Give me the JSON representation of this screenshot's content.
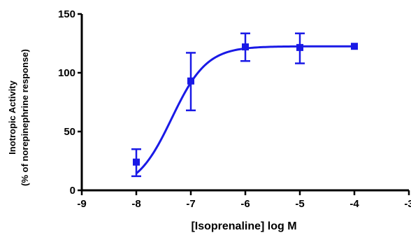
{
  "chart_data": {
    "type": "scatter",
    "title": "",
    "xlabel": "[Isoprenaline] log M",
    "ylabel_lines": [
      "Inotropic Activity",
      "(% of norepinephrine response)"
    ],
    "xlim": [
      -9,
      -3
    ],
    "ylim": [
      0,
      150
    ],
    "x_ticks": [
      -9,
      -8,
      -7,
      -6,
      -5,
      -4,
      -3
    ],
    "x_tick_labels": [
      "-9",
      "-8",
      "-7",
      "-6",
      "-5",
      "-4",
      "-3"
    ],
    "y_ticks": [
      0,
      50,
      100,
      150
    ],
    "y_tick_labels": [
      "0",
      "50",
      "100",
      "150"
    ],
    "grid": false,
    "legend": "none",
    "color": "#1a1ae6",
    "series": [
      {
        "x": [
          -8,
          -7,
          -6,
          -5,
          -4
        ],
        "y": [
          24,
          93,
          122,
          121.5,
          122.5
        ],
        "error_low": [
          12,
          68,
          110,
          108,
          122.5
        ],
        "error_high": [
          35,
          117,
          133.5,
          133.5,
          122.5
        ]
      }
    ],
    "fit_curve": {
      "type": "sigmoid",
      "bottom": 0,
      "top": 122.5,
      "logEC50": -7.35,
      "hillslope": 1.35,
      "x_start": -8,
      "x_end": -4
    }
  }
}
